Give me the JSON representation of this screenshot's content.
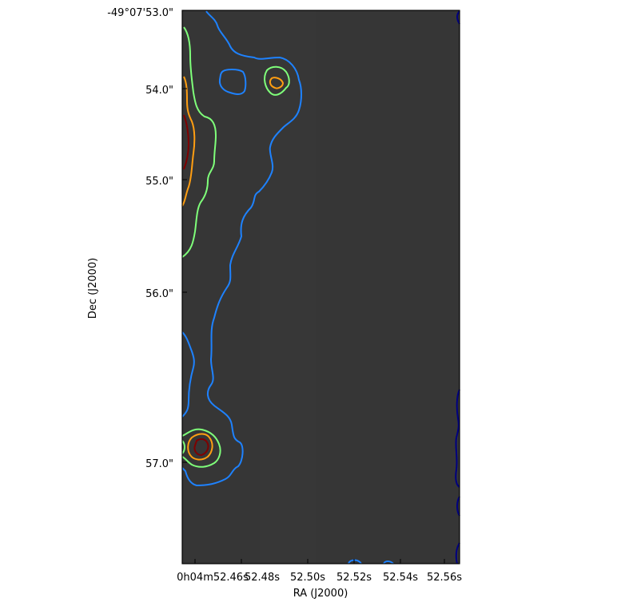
{
  "chart_data": {
    "type": "contour",
    "xlabel": "RA (J2000)",
    "ylabel": "Dec (J2000)",
    "x_ticks": [
      "0h04m52.46s",
      "52.48s",
      "52.50s",
      "52.52s",
      "52.54s",
      "52.56s"
    ],
    "y_ticks": [
      "-49°07'53.0\"",
      "54.0\"",
      "55.0\"",
      "56.0\"",
      "57.0\""
    ],
    "grid": false,
    "background_color": "#363636",
    "contour_colors": [
      "#000080",
      "#1e82ff",
      "#7fff7a",
      "#ff9e12",
      "#7f0000"
    ]
  }
}
